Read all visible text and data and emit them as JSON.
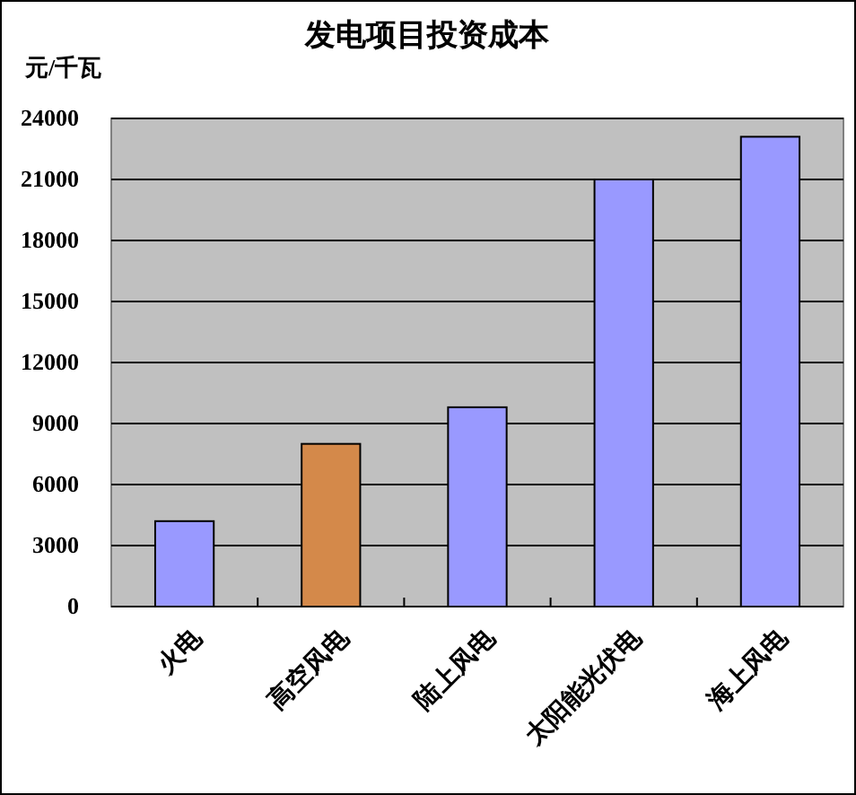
{
  "chart_data": {
    "type": "bar",
    "title": "发电项目投资成本",
    "ylabel": "元/千瓦",
    "categories": [
      "火电",
      "高空风电",
      "陆上风电",
      "太阳能光伏电",
      "海上风电"
    ],
    "values": [
      4200,
      8000,
      9800,
      21000,
      23100
    ],
    "colors": [
      "#9999ff",
      "#d4894a",
      "#9999ff",
      "#9999ff",
      "#9999ff"
    ],
    "ylim": [
      0,
      24000
    ],
    "yticks": [
      0,
      3000,
      6000,
      9000,
      12000,
      15000,
      18000,
      21000,
      24000
    ],
    "grid": "y"
  }
}
